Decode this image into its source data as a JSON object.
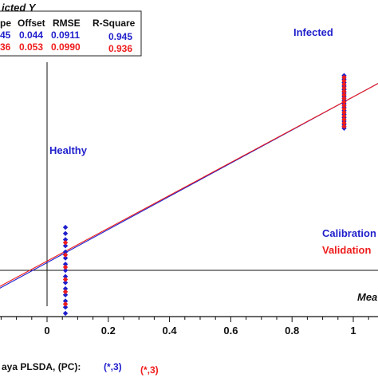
{
  "chart_data": {
    "type": "scatter",
    "y_title": "icted Y",
    "x_title": "Mea",
    "xlim": [
      -0.2,
      1.2
    ],
    "ylim": [
      -0.45,
      1.25
    ],
    "x_ticks": [
      "0",
      "0.2",
      "0.4",
      "0.6",
      "0.8",
      "1"
    ],
    "x_tick_values": [
      0,
      0.2,
      0.4,
      0.6,
      0.8,
      1.0
    ],
    "class_labels": [
      {
        "text": "Healthy",
        "x": 0.07,
        "y": 0.285
      },
      {
        "text": "Infected",
        "x": 0.97,
        "y": 1.14
      }
    ],
    "legend": {
      "position": "right",
      "entries": [
        {
          "label": "Calibration",
          "color": "#1f1fcc"
        },
        {
          "label": "Validation",
          "color": "#ee1c1c"
        }
      ]
    },
    "stats_table": {
      "headers": [
        "pe",
        "Offset",
        "RMSE",
        "R-Square"
      ],
      "rows": [
        {
          "color": "#1f1fcc",
          "cells": [
            "45",
            "0.044",
            "0.0911",
            "0.945"
          ]
        },
        {
          "color": "#ee1c1c",
          "cells": [
            "36",
            "0.053",
            "0.0990",
            "0.936"
          ]
        }
      ]
    },
    "series": [
      {
        "name": "Calibration",
        "color": "#1f1fcc",
        "marker": "diamond",
        "slope": 0.945,
        "offset": 0.044,
        "x": [
          0.06,
          0.97
        ],
        "y_values": {
          "0.06": [
            0.245,
            0.21,
            0.175,
            0.14,
            0.105,
            0.07,
            0.035,
            0.0,
            -0.035,
            -0.07,
            -0.105,
            -0.14,
            -0.175,
            -0.21,
            -0.245
          ],
          "0.97": [
            1.11,
            1.09,
            1.07,
            1.05,
            1.03,
            1.01,
            0.99,
            0.97,
            0.95,
            0.93,
            0.91,
            0.89,
            0.87,
            0.85,
            0.83,
            0.81
          ]
        }
      },
      {
        "name": "Validation",
        "color": "#ee1c1c",
        "marker": "diamond",
        "slope": 0.936,
        "offset": 0.053,
        "x": [
          0.06,
          0.97
        ],
        "y_values": {
          "0.06": [
            0.158,
            0.088,
            0.018,
            -0.052,
            -0.122,
            -0.192
          ],
          "0.97": [
            1.1,
            1.08,
            1.06,
            1.04,
            1.02,
            1.0,
            0.98,
            0.96,
            0.94,
            0.92,
            0.9,
            0.88,
            0.86,
            0.84,
            0.82
          ]
        }
      }
    ],
    "footer": {
      "text": "aya PLSDA, (PC):",
      "pc_cal": "(*,3)",
      "pc_val": "(*,3)"
    }
  }
}
